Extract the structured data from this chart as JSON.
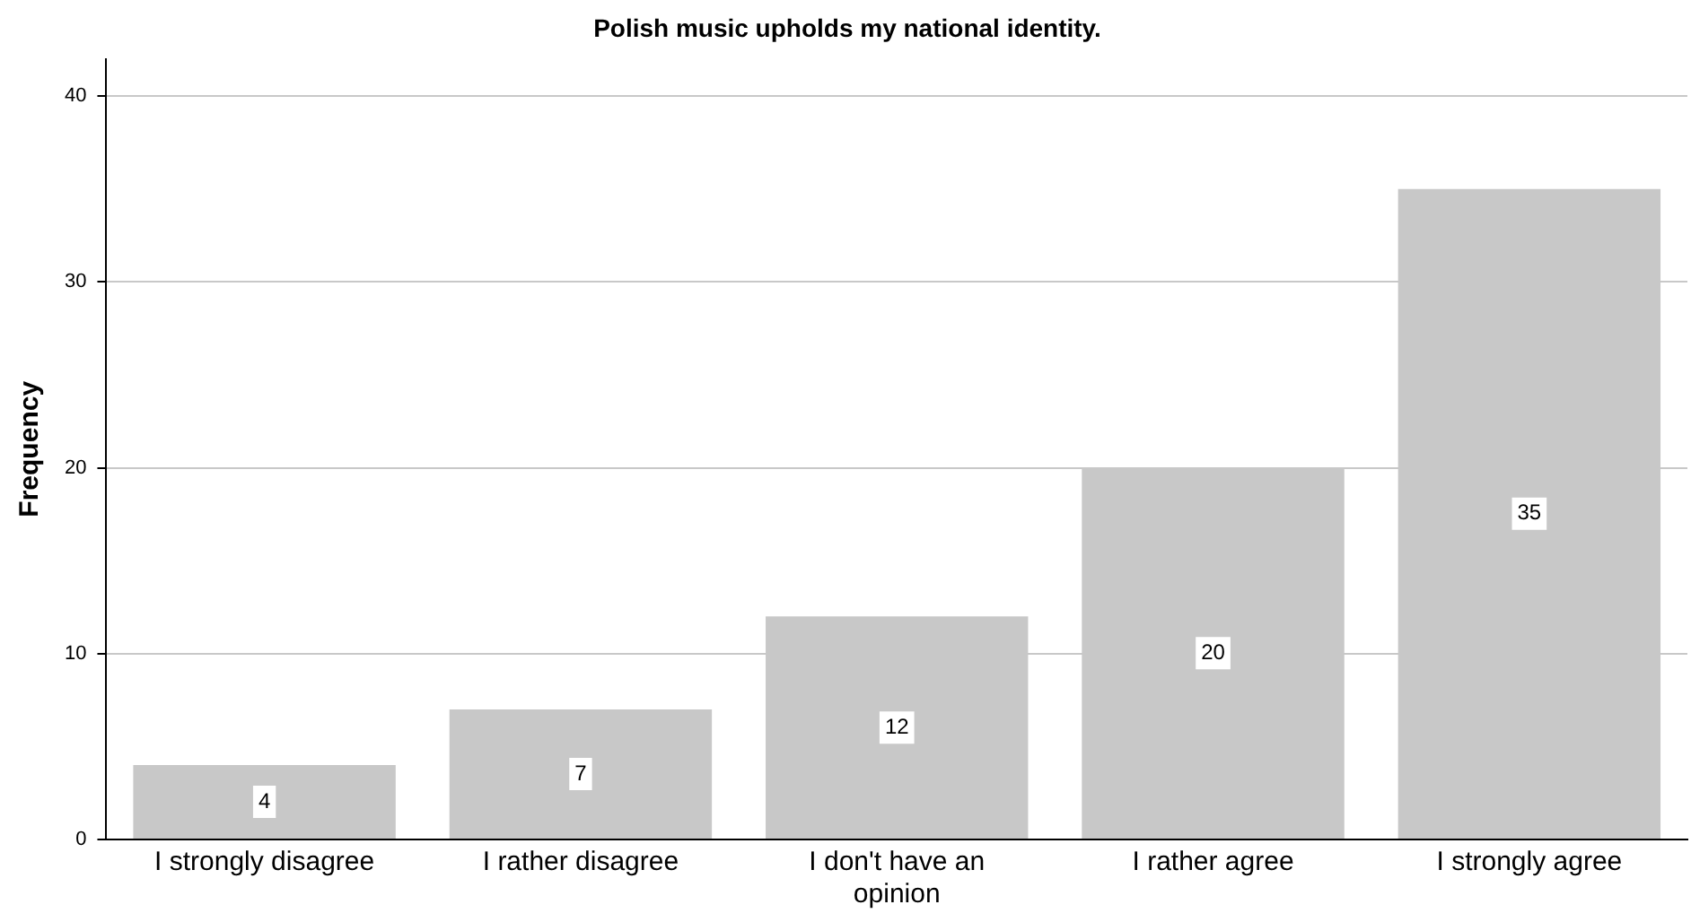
{
  "chart_data": {
    "type": "bar",
    "title": "Polish music upholds my national identity.",
    "ylabel": "Frequency",
    "categories": [
      "I strongly disagree",
      "I rather disagree",
      "I don't have an opinion",
      "I rather agree",
      "I strongly agree"
    ],
    "values": [
      4,
      7,
      12,
      20,
      35
    ],
    "color": "#c8c8c8",
    "ylim": [
      0,
      42
    ],
    "yticks": [
      0,
      10,
      20,
      30,
      40
    ],
    "grid": "y",
    "legend": false,
    "data_labels": true
  }
}
